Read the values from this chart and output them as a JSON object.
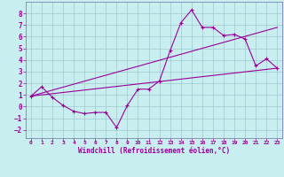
{
  "xlabel": "Windchill (Refroidissement éolien,°C)",
  "bg_color": "#c8eef0",
  "grid_color": "#a0c8d0",
  "line_color": "#990099",
  "spine_color": "#7070a0",
  "xlim": [
    -0.5,
    23.5
  ],
  "ylim": [
    -2.7,
    9.0
  ],
  "yticks": [
    -2,
    -1,
    0,
    1,
    2,
    3,
    4,
    5,
    6,
    7,
    8
  ],
  "xticks": [
    0,
    1,
    2,
    3,
    4,
    5,
    6,
    7,
    8,
    9,
    10,
    11,
    12,
    13,
    14,
    15,
    16,
    17,
    18,
    19,
    20,
    21,
    22,
    23
  ],
  "line1_x": [
    0,
    1,
    2,
    3,
    4,
    5,
    6,
    7,
    8,
    9,
    10,
    11,
    12,
    13,
    14,
    15,
    16,
    17,
    18,
    19,
    20,
    21,
    22,
    23
  ],
  "line1_y": [
    0.9,
    1.7,
    0.8,
    0.1,
    -0.4,
    -0.6,
    -0.5,
    -0.5,
    -1.8,
    0.1,
    1.5,
    1.5,
    2.2,
    4.8,
    7.2,
    8.3,
    6.8,
    6.8,
    6.1,
    6.2,
    5.8,
    3.5,
    4.1,
    3.3
  ],
  "line2_x": [
    0,
    23
  ],
  "line2_y": [
    0.9,
    6.8
  ],
  "line3_x": [
    0,
    23
  ],
  "line3_y": [
    0.9,
    3.3
  ]
}
